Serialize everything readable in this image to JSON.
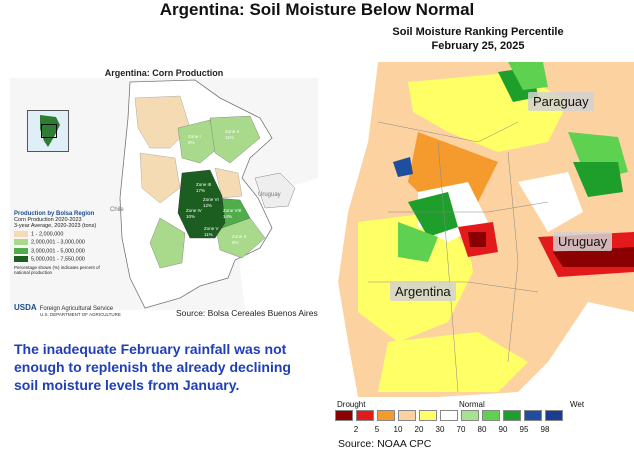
{
  "title": "Argentina: Soil Moisture Below Normal",
  "left": {
    "map_title": "Argentina: Corn Production",
    "countries": [
      "Chile",
      "Uruguay"
    ],
    "zones": [
      "Zone I",
      "Zone II",
      "Zone III",
      "Zone IV",
      "Zone V",
      "Zone VI",
      "Zone VII",
      "Zone VIII",
      "Zone IX",
      "Zone X"
    ],
    "zone_pct": [
      "6%",
      "11%",
      "17%",
      "12%",
      "10%",
      "14%",
      "11%",
      "9%",
      "6%"
    ],
    "legend": {
      "heading": "Production by Bolsa Region",
      "sub1": "Corn Production 2020-2023",
      "sub2": "3-year Average, 2020-2023 (tons)",
      "items": [
        {
          "label": "1 - 2,000,000",
          "color": "#f5dbb3"
        },
        {
          "label": "2,000,001 - 3,000,000",
          "color": "#a9d98a"
        },
        {
          "label": "3,000,001 - 5,000,000",
          "color": "#4fae4a"
        },
        {
          "label": "5,000,001 - 7,550,000",
          "color": "#1b5e20"
        }
      ],
      "note": "Percentage shown (%) indicates percent of national production"
    },
    "usda_logo": "USDA",
    "usda_name": "Foreign Agricultural Service",
    "usda_sub": "U.S. DEPARTMENT OF AGRICULTURE",
    "source": "Source: Bolsa Cereales Buenos Aires"
  },
  "body_text": "The inadequate February rainfall was not enough to replenish the already declining soil moisture levels from January.",
  "right": {
    "title_line1": "Soil Moisture Ranking Percentile",
    "title_line2": "February 25, 2025",
    "labels": {
      "paraguay": "Paraguay",
      "uruguay": "Uruguay",
      "argentina": "Argentina"
    },
    "legend": {
      "drought": "Drought",
      "normal": "Normal",
      "wet": "Wet",
      "ticks": [
        "2",
        "5",
        "10",
        "20",
        "30",
        "70",
        "80",
        "90",
        "95",
        "98"
      ],
      "colors": [
        "#8b0000",
        "#e31a1c",
        "#f59a2c",
        "#fcd2a0",
        "#ffff66",
        "#ffffff",
        "#a6e38f",
        "#5fd150",
        "#1e9e2a",
        "#1f4e9e",
        "#1a3d8f"
      ]
    },
    "source": "Source: NOAA CPC"
  }
}
